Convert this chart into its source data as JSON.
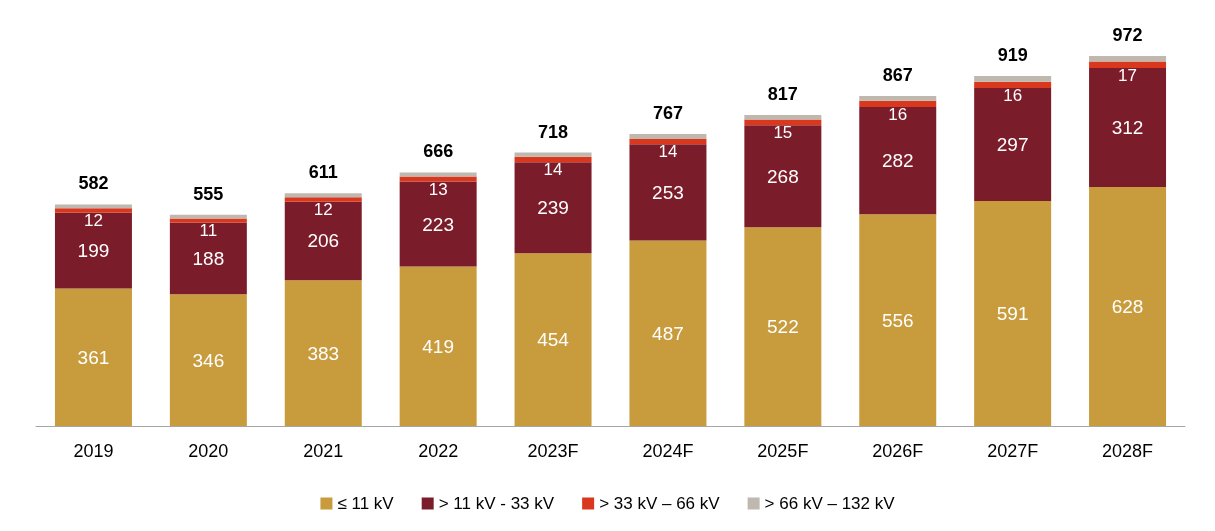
{
  "chart_data": {
    "type": "bar",
    "stacked": true,
    "categories": [
      "2019",
      "2020",
      "2021",
      "2022",
      "2023F",
      "2024F",
      "2025F",
      "2026F",
      "2027F",
      "2028F"
    ],
    "series": [
      {
        "name": "≤ 11 kV",
        "color": "#c89b3c",
        "values": [
          361,
          346,
          383,
          419,
          454,
          487,
          522,
          556,
          591,
          628
        ],
        "value_labels": [
          "361",
          "346",
          "383",
          "419",
          "454",
          "487",
          "522",
          "556",
          "591",
          "628"
        ]
      },
      {
        "name": "> 11 kV - 33 kV",
        "color": "#7b1c2a",
        "values": [
          199,
          188,
          206,
          223,
          239,
          253,
          268,
          282,
          297,
          312
        ],
        "value_labels": [
          "199",
          "188",
          "206",
          "223",
          "239",
          "253",
          "268",
          "282",
          "297",
          "312"
        ]
      },
      {
        "name": "> 33 kV – 66 kV",
        "color": "#d9381e",
        "values": [
          12,
          11,
          12,
          13,
          14,
          14,
          15,
          16,
          16,
          17
        ],
        "value_labels": [
          "12",
          "11",
          "12",
          "13",
          "14",
          "14",
          "15",
          "16",
          "16",
          "17"
        ]
      },
      {
        "name": "> 66 kV – 132 kV",
        "color": "#bfb8ae",
        "values": [
          10,
          10,
          10,
          11,
          11,
          13,
          12,
          13,
          15,
          15
        ]
      }
    ],
    "totals": [
      "582",
      "555",
      "611",
      "666",
      "718",
      "767",
      "817",
      "867",
      "919",
      "972"
    ],
    "legend": "bottom"
  }
}
